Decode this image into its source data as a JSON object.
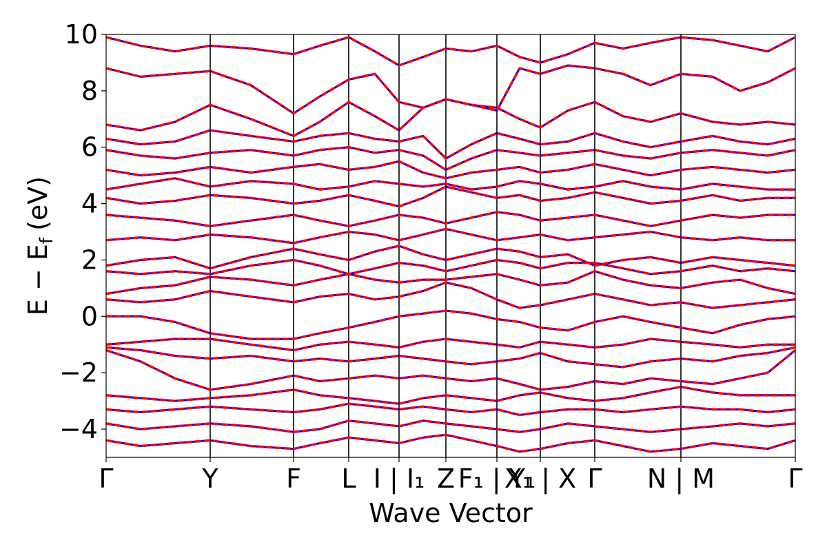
{
  "chart_data": {
    "type": "line",
    "title": "",
    "xlabel": "Wave Vector",
    "ylabel": "E − E",
    "ylabel_sub": "f",
    "ylabel_unit": "(eV)",
    "ylim": [
      -5,
      10
    ],
    "xlim": [
      0,
      1
    ],
    "grid": false,
    "legend": "none",
    "y_ticks": [
      {
        "value": -4,
        "label": "−4"
      },
      {
        "value": -2,
        "label": "−2"
      },
      {
        "value": 0,
        "label": "0"
      },
      {
        "value": 2,
        "label": "2"
      },
      {
        "value": 4,
        "label": "4"
      },
      {
        "value": 6,
        "label": "6"
      },
      {
        "value": 8,
        "label": "8"
      },
      {
        "value": 10,
        "label": "10"
      }
    ],
    "kpath_lines": [
      0.151,
      0.272,
      0.352,
      0.425,
      0.493,
      0.567,
      0.63,
      0.709,
      0.834
    ],
    "kpath_labels": [
      {
        "x": 0.0,
        "label": "Γ"
      },
      {
        "x": 0.151,
        "label": "Y"
      },
      {
        "x": 0.272,
        "label": "F"
      },
      {
        "x": 0.352,
        "label": "L"
      },
      {
        "x": 0.425,
        "label": "I | I₁"
      },
      {
        "x": 0.493,
        "label": "Z"
      },
      {
        "x": 0.567,
        "label": "F₁ | Y₁"
      },
      {
        "x": 0.63,
        "label": "X₁ | X"
      },
      {
        "x": 0.709,
        "label": "Γ"
      },
      {
        "x": 0.834,
        "label": "N | M"
      },
      {
        "x": 1.0,
        "label": "Γ"
      }
    ],
    "series_styles": [
      {
        "color": "#0000ff",
        "dash": "solid",
        "width": 3
      },
      {
        "color": "#ff0000",
        "dash": "dashed",
        "width": 3.5
      }
    ],
    "bands_x": [
      0,
      0.05,
      0.1,
      0.151,
      0.21,
      0.272,
      0.31,
      0.352,
      0.39,
      0.425,
      0.46,
      0.493,
      0.53,
      0.567,
      0.6,
      0.63,
      0.67,
      0.709,
      0.75,
      0.79,
      0.834,
      0.88,
      0.92,
      0.96,
      1.0
    ],
    "bands": [
      [
        -4.4,
        -4.6,
        -4.5,
        -4.4,
        -4.6,
        -4.7,
        -4.5,
        -4.3,
        -4.4,
        -4.5,
        -4.3,
        -4.2,
        -4.4,
        -4.6,
        -4.8,
        -4.7,
        -4.5,
        -4.4,
        -4.6,
        -4.8,
        -4.7,
        -4.5,
        -4.6,
        -4.7,
        -4.4
      ],
      [
        -3.8,
        -4.0,
        -3.9,
        -3.8,
        -3.9,
        -4.1,
        -4.0,
        -3.7,
        -3.8,
        -3.9,
        -3.7,
        -3.8,
        -3.9,
        -4.0,
        -4.1,
        -4.0,
        -3.8,
        -3.9,
        -4.0,
        -4.1,
        -4.0,
        -3.9,
        -3.8,
        -3.9,
        -3.8
      ],
      [
        -3.3,
        -3.4,
        -3.3,
        -3.2,
        -3.3,
        -3.4,
        -3.3,
        -3.1,
        -3.2,
        -3.3,
        -3.2,
        -3.3,
        -3.4,
        -3.3,
        -3.5,
        -3.4,
        -3.3,
        -3.3,
        -3.4,
        -3.3,
        -3.2,
        -3.3,
        -3.3,
        -3.4,
        -3.3
      ],
      [
        -2.8,
        -2.9,
        -3.0,
        -2.9,
        -2.8,
        -2.6,
        -2.8,
        -2.9,
        -3.0,
        -3.1,
        -2.9,
        -2.8,
        -2.9,
        -3.0,
        -2.8,
        -2.7,
        -2.9,
        -3.0,
        -2.9,
        -2.7,
        -2.5,
        -2.7,
        -2.8,
        -2.8,
        -2.8
      ],
      [
        -1.2,
        -1.6,
        -2.2,
        -2.6,
        -2.4,
        -2.1,
        -2.3,
        -2.2,
        -2.1,
        -2.2,
        -2.1,
        -2.2,
        -2.3,
        -2.2,
        -2.4,
        -2.6,
        -2.5,
        -2.3,
        -2.4,
        -2.2,
        -2.3,
        -2.4,
        -2.2,
        -2.0,
        -1.2
      ],
      [
        -1.1,
        -1.2,
        -1.4,
        -1.5,
        -1.4,
        -1.6,
        -1.5,
        -1.6,
        -1.5,
        -1.4,
        -1.5,
        -1.6,
        -1.7,
        -1.6,
        -1.5,
        -1.3,
        -1.6,
        -1.7,
        -1.8,
        -1.6,
        -1.5,
        -1.6,
        -1.4,
        -1.3,
        -1.1
      ],
      [
        -1.0,
        -0.9,
        -0.8,
        -0.8,
        -1.0,
        -1.2,
        -1.0,
        -0.9,
        -1.0,
        -1.1,
        -0.9,
        -0.8,
        -0.9,
        -1.0,
        -1.1,
        -0.9,
        -1.0,
        -1.1,
        -1.0,
        -0.8,
        -0.9,
        -1.0,
        -1.1,
        -1.0,
        -1.0
      ],
      [
        0.0,
        0.0,
        -0.2,
        -0.6,
        -0.8,
        -0.8,
        -0.6,
        -0.4,
        -0.2,
        0.0,
        0.1,
        0.2,
        0.1,
        -0.1,
        -0.2,
        -0.4,
        -0.5,
        -0.2,
        0.0,
        -0.2,
        -0.4,
        -0.6,
        -0.3,
        -0.1,
        0.0
      ],
      [
        0.6,
        0.5,
        0.6,
        0.9,
        0.7,
        0.5,
        0.7,
        0.8,
        0.6,
        0.7,
        0.9,
        1.2,
        1.0,
        0.6,
        0.3,
        0.4,
        0.6,
        0.8,
        0.6,
        0.4,
        0.5,
        0.3,
        0.4,
        0.5,
        0.6
      ],
      [
        0.8,
        1.0,
        1.1,
        1.4,
        1.3,
        1.1,
        1.3,
        1.5,
        1.3,
        1.2,
        1.3,
        1.3,
        1.4,
        1.5,
        1.3,
        1.1,
        1.2,
        1.6,
        1.3,
        1.1,
        1.0,
        1.2,
        1.3,
        1.0,
        0.8
      ],
      [
        1.6,
        1.5,
        1.6,
        1.5,
        1.8,
        2.0,
        1.8,
        1.5,
        1.7,
        1.9,
        1.8,
        1.6,
        1.8,
        2.0,
        1.9,
        1.7,
        1.9,
        1.9,
        1.7,
        1.5,
        1.6,
        1.8,
        1.6,
        1.7,
        1.6
      ],
      [
        1.8,
        2.0,
        2.1,
        1.7,
        2.1,
        2.4,
        2.2,
        2.0,
        2.3,
        2.5,
        2.2,
        2.0,
        2.2,
        2.4,
        2.3,
        2.1,
        2.2,
        1.8,
        2.0,
        2.1,
        1.9,
        2.1,
        2.0,
        1.9,
        1.8
      ],
      [
        2.7,
        2.8,
        2.7,
        2.9,
        2.8,
        2.6,
        2.8,
        3.0,
        2.9,
        2.7,
        2.9,
        3.1,
        2.9,
        2.7,
        2.8,
        2.9,
        2.7,
        2.8,
        2.9,
        3.0,
        2.8,
        2.7,
        2.8,
        2.7,
        2.7
      ],
      [
        3.6,
        3.5,
        3.4,
        3.2,
        3.4,
        3.6,
        3.4,
        3.2,
        3.4,
        3.6,
        3.5,
        3.3,
        3.5,
        3.7,
        3.6,
        3.4,
        3.5,
        3.6,
        3.4,
        3.2,
        3.4,
        3.6,
        3.5,
        3.6,
        3.6
      ],
      [
        4.2,
        4.0,
        4.1,
        4.3,
        4.2,
        4.0,
        4.1,
        4.3,
        4.1,
        3.9,
        4.2,
        4.6,
        4.4,
        4.2,
        4.3,
        4.1,
        4.2,
        4.4,
        4.2,
        4.0,
        4.1,
        4.3,
        4.1,
        4.2,
        4.2
      ],
      [
        4.5,
        4.7,
        4.9,
        4.6,
        4.8,
        4.7,
        4.5,
        4.6,
        4.8,
        4.7,
        4.6,
        4.7,
        4.5,
        4.6,
        4.8,
        4.7,
        4.5,
        4.6,
        4.8,
        4.6,
        4.5,
        4.7,
        4.6,
        4.5,
        4.5
      ],
      [
        5.2,
        5.0,
        5.1,
        5.3,
        5.1,
        5.3,
        5.4,
        5.2,
        5.3,
        5.5,
        5.1,
        4.9,
        5.1,
        5.2,
        5.3,
        5.1,
        5.2,
        5.4,
        5.2,
        5.0,
        5.2,
        5.3,
        5.2,
        5.1,
        5.2
      ],
      [
        5.9,
        5.7,
        5.6,
        5.8,
        5.9,
        5.7,
        5.9,
        6.0,
        5.8,
        5.9,
        5.7,
        5.2,
        5.6,
        5.9,
        5.8,
        5.7,
        5.8,
        5.9,
        5.7,
        5.6,
        5.8,
        5.9,
        5.8,
        5.7,
        5.9
      ],
      [
        6.3,
        6.1,
        6.2,
        6.6,
        6.4,
        6.2,
        6.4,
        6.5,
        6.3,
        6.2,
        6.4,
        5.6,
        6.1,
        6.5,
        6.3,
        6.1,
        6.2,
        6.5,
        6.2,
        6.0,
        6.2,
        6.4,
        6.2,
        6.1,
        6.3
      ],
      [
        6.8,
        6.6,
        6.9,
        7.5,
        7.0,
        6.4,
        6.9,
        7.6,
        7.1,
        6.6,
        7.4,
        7.7,
        7.5,
        7.4,
        7.0,
        6.7,
        7.3,
        7.6,
        7.1,
        6.9,
        7.2,
        6.9,
        6.8,
        6.9,
        6.8
      ],
      [
        8.8,
        8.5,
        8.6,
        8.7,
        8.2,
        7.2,
        7.8,
        8.4,
        8.6,
        7.6,
        7.4,
        7.7,
        7.5,
        7.3,
        8.8,
        8.6,
        8.9,
        8.8,
        8.6,
        8.2,
        8.6,
        8.5,
        8.0,
        8.3,
        8.8
      ],
      [
        9.9,
        9.6,
        9.4,
        9.6,
        9.5,
        9.3,
        9.6,
        9.9,
        9.4,
        8.9,
        9.2,
        9.5,
        9.4,
        9.6,
        9.2,
        9.0,
        9.3,
        9.7,
        9.5,
        9.7,
        9.9,
        9.8,
        9.6,
        9.4,
        9.9
      ]
    ]
  }
}
